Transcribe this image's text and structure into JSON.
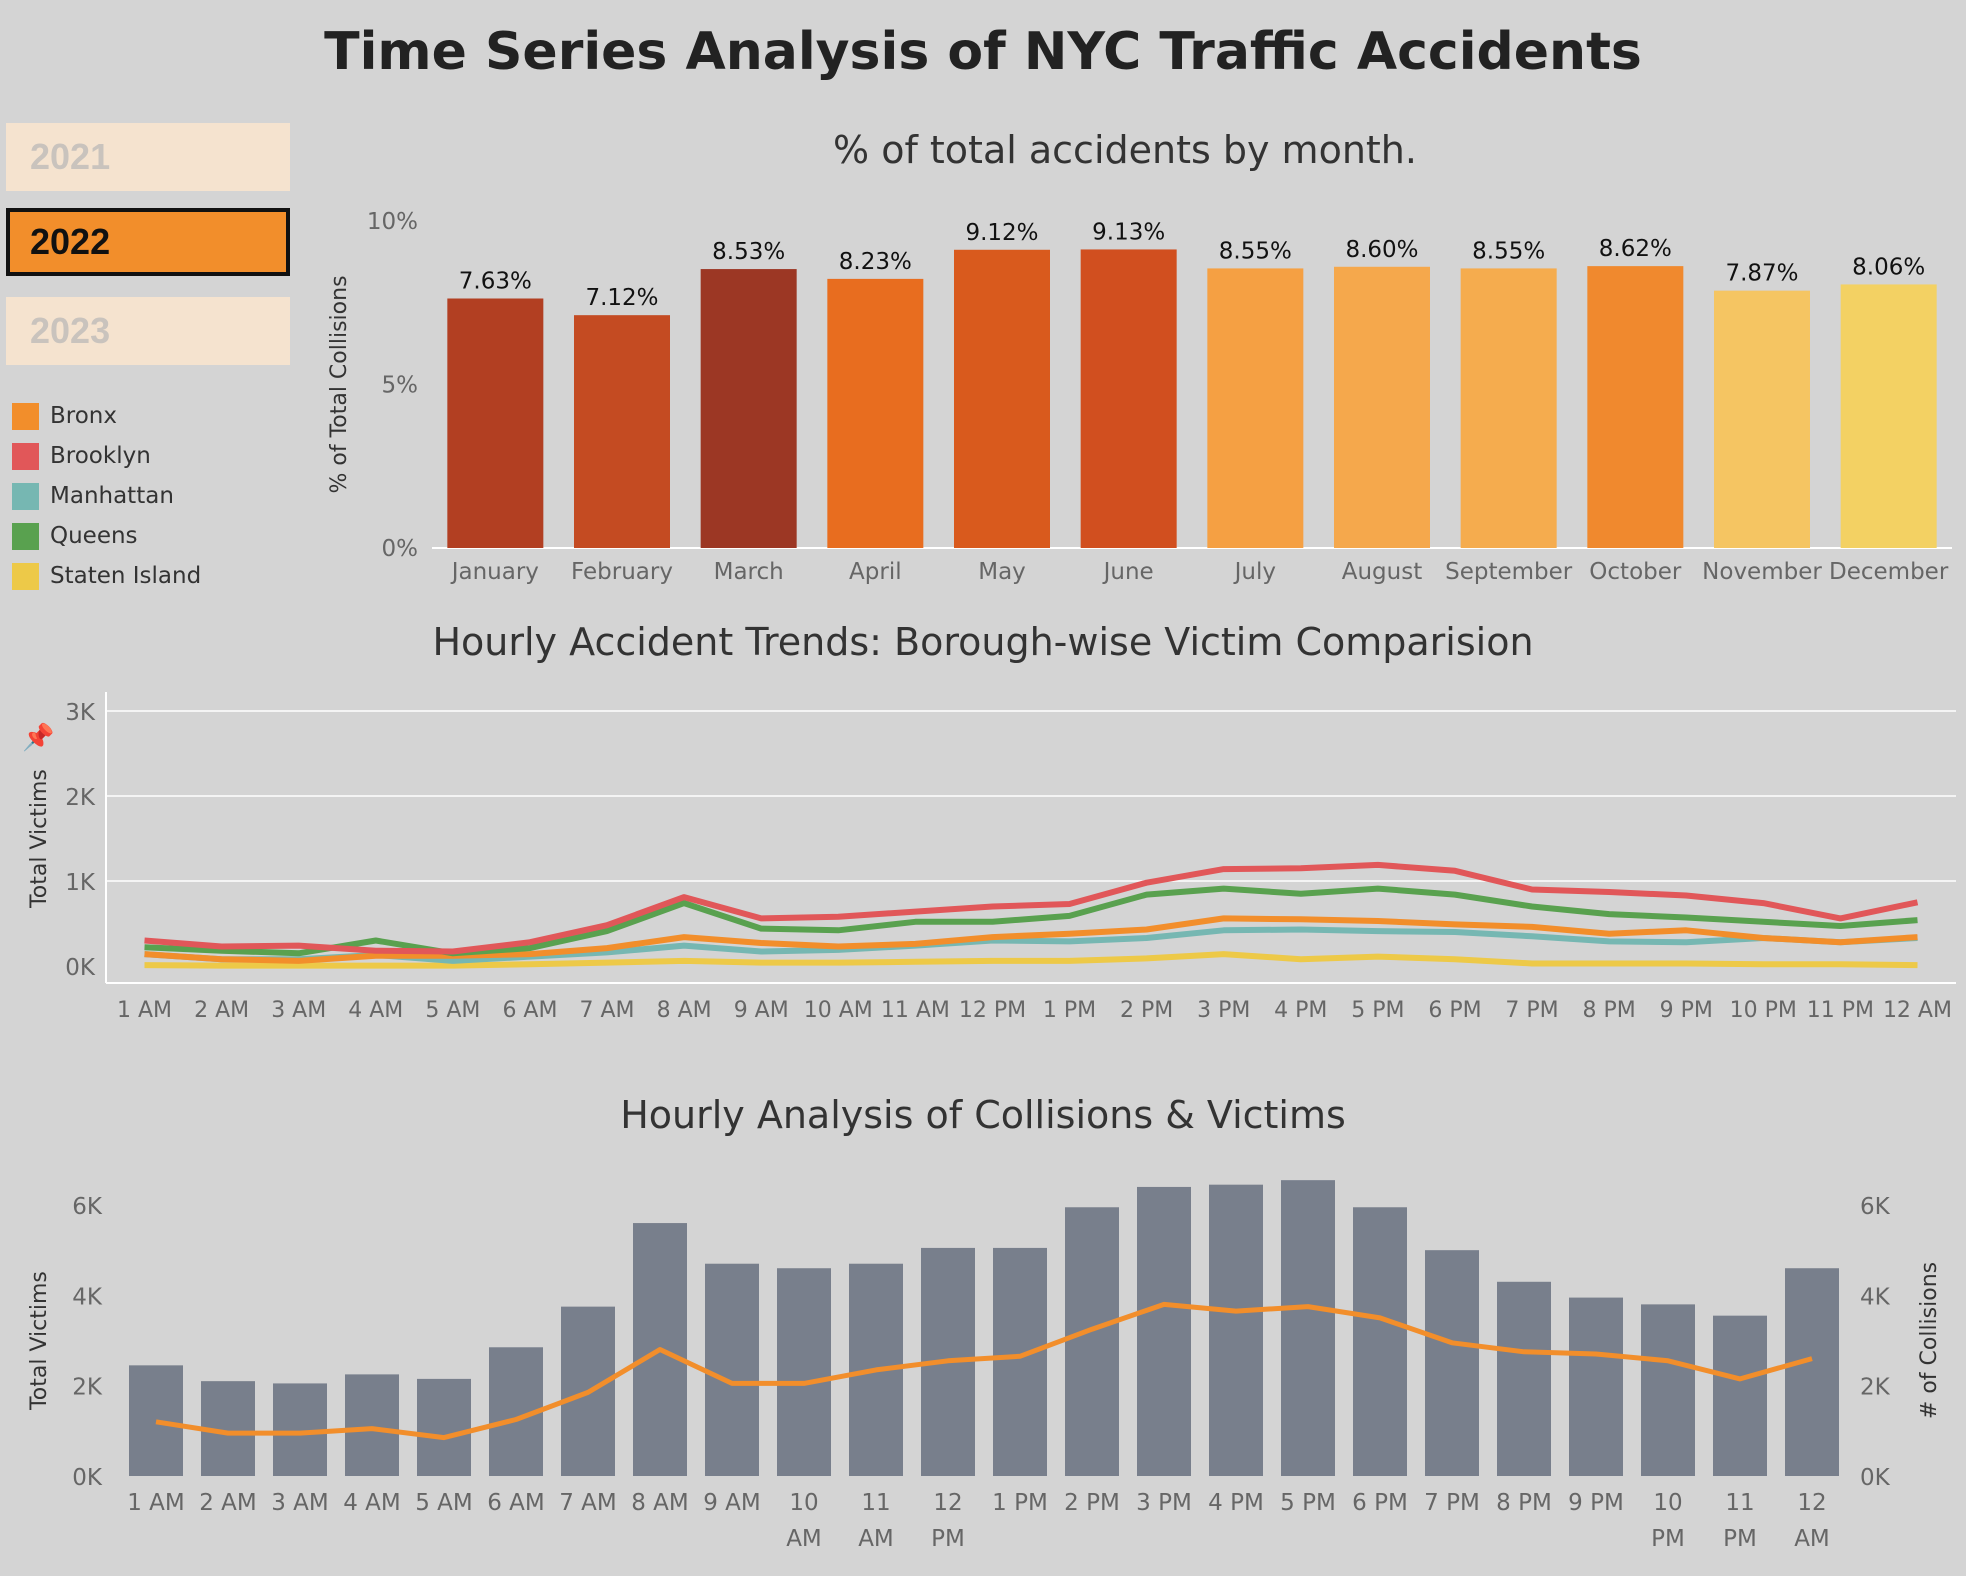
{
  "title": "Time Series Analysis of NYC Traffic Accidents",
  "year_filter": {
    "options": [
      {
        "label": "2021",
        "selected": false
      },
      {
        "label": "2022",
        "selected": true
      },
      {
        "label": "2023",
        "selected": false
      }
    ]
  },
  "legend": {
    "items": [
      {
        "label": "Bronx",
        "color": "#f28e2b"
      },
      {
        "label": "Brooklyn",
        "color": "#e15759"
      },
      {
        "label": "Manhattan",
        "color": "#76b7b2"
      },
      {
        "label": "Queens",
        "color": "#59a14f"
      },
      {
        "label": "Staten Island",
        "color": "#edc948"
      }
    ]
  },
  "chart_data": [
    {
      "type": "bar",
      "title": "% of total accidents by month.",
      "ylabel": "% of Total Collisions",
      "xlabel": "",
      "ylim": [
        0,
        10
      ],
      "yticks": [
        "0%",
        "5%",
        "10%"
      ],
      "categories": [
        "January",
        "February",
        "March",
        "April",
        "May",
        "June",
        "July",
        "August",
        "September",
        "October",
        "November",
        "December"
      ],
      "values": [
        7.63,
        7.12,
        8.53,
        8.23,
        9.12,
        9.13,
        8.55,
        8.6,
        8.55,
        8.62,
        7.87,
        8.06
      ],
      "labels": [
        "7.63%",
        "7.12%",
        "8.53%",
        "8.23%",
        "9.12%",
        "9.13%",
        "8.55%",
        "8.60%",
        "8.55%",
        "8.62%",
        "7.87%",
        "8.06%"
      ],
      "colors": [
        "#b23f22",
        "#c44b22",
        "#9c3724",
        "#e86d1f",
        "#d95a1d",
        "#d14f1f",
        "#f5a043",
        "#f5a84c",
        "#f5ac4e",
        "#f0892e",
        "#f5c562",
        "#f3d163"
      ]
    },
    {
      "type": "line",
      "title": "Hourly Accident Trends: Borough-wise Victim Comparision",
      "ylabel": "Total Victims",
      "xlabel": "",
      "ylim": [
        0,
        3000
      ],
      "yticks": [
        "0K",
        "1K",
        "2K",
        "3K"
      ],
      "x": [
        "1 AM",
        "2 AM",
        "3 AM",
        "4 AM",
        "5 AM",
        "6 AM",
        "7 AM",
        "8 AM",
        "9 AM",
        "10 AM",
        "11 AM",
        "12 PM",
        "1 PM",
        "2 PM",
        "3 PM",
        "4 PM",
        "5 PM",
        "6 PM",
        "7 PM",
        "8 PM",
        "9 PM",
        "10 PM",
        "11 PM",
        "12 AM"
      ],
      "series": [
        {
          "name": "Staten Island",
          "color": "#edc948",
          "values": [
            10,
            5,
            5,
            5,
            5,
            20,
            40,
            60,
            40,
            40,
            50,
            60,
            60,
            90,
            140,
            80,
            110,
            80,
            30,
            30,
            30,
            20,
            20,
            10
          ]
        },
        {
          "name": "Manhattan",
          "color": "#76b7b2",
          "values": [
            140,
            80,
            80,
            130,
            60,
            110,
            160,
            240,
            170,
            190,
            240,
            300,
            290,
            330,
            420,
            430,
            410,
            400,
            350,
            290,
            280,
            330,
            280,
            330
          ]
        },
        {
          "name": "Bronx",
          "color": "#f28e2b",
          "values": [
            140,
            80,
            60,
            120,
            120,
            140,
            210,
            340,
            270,
            230,
            260,
            340,
            380,
            430,
            560,
            550,
            530,
            490,
            460,
            380,
            420,
            330,
            280,
            340
          ]
        },
        {
          "name": "Queens",
          "color": "#59a14f",
          "values": [
            220,
            180,
            150,
            300,
            150,
            210,
            410,
            740,
            440,
            420,
            520,
            520,
            590,
            840,
            910,
            850,
            910,
            840,
            700,
            610,
            570,
            520,
            470,
            540
          ]
        },
        {
          "name": "Brooklyn",
          "color": "#e15759",
          "values": [
            300,
            230,
            240,
            180,
            170,
            280,
            480,
            810,
            560,
            580,
            640,
            700,
            730,
            980,
            1140,
            1150,
            1190,
            1120,
            900,
            870,
            830,
            740,
            560,
            750
          ]
        }
      ]
    },
    {
      "type": "bar",
      "title": "Hourly Analysis of Collisions & Victims",
      "ylabel": "Total Victims",
      "y2label": "# of Collisions",
      "xlabel": "",
      "ylim": [
        0,
        6000
      ],
      "yticks": [
        "0K",
        "2K",
        "4K",
        "6K"
      ],
      "y2ticks": [
        "0K",
        "2K",
        "4K",
        "6K"
      ],
      "categories": [
        "1 AM",
        "2 AM",
        "3 AM",
        "4 AM",
        "5 AM",
        "6 AM",
        "7 AM",
        "8 AM",
        "9 AM",
        "10 AM",
        "11 AM",
        "12 PM",
        "1 PM",
        "2 PM",
        "3 PM",
        "4 PM",
        "5 PM",
        "6 PM",
        "7 PM",
        "8 PM",
        "9 PM",
        "10 PM",
        "11 PM",
        "12 AM"
      ],
      "category_labels": [
        [
          "1 AM"
        ],
        [
          "2 AM"
        ],
        [
          "3 AM"
        ],
        [
          "4 AM"
        ],
        [
          "5 AM"
        ],
        [
          "6 AM"
        ],
        [
          "7 AM"
        ],
        [
          "8 AM"
        ],
        [
          "9 AM"
        ],
        [
          "10",
          "AM"
        ],
        [
          "11",
          "AM"
        ],
        [
          "12",
          "PM"
        ],
        [
          "1 PM"
        ],
        [
          "2 PM"
        ],
        [
          "3 PM"
        ],
        [
          "4 PM"
        ],
        [
          "5 PM"
        ],
        [
          "6 PM"
        ],
        [
          "7 PM"
        ],
        [
          "8 PM"
        ],
        [
          "9 PM"
        ],
        [
          "10",
          "PM"
        ],
        [
          "11",
          "PM"
        ],
        [
          "12",
          "AM"
        ]
      ],
      "series": [
        {
          "name": "Total Victims",
          "type": "bar",
          "color": "#787f8c",
          "values": [
            2450,
            2100,
            2050,
            2250,
            2150,
            2850,
            3750,
            5600,
            4700,
            4600,
            4700,
            5050,
            5050,
            5950,
            6400,
            6450,
            6550,
            5950,
            5000,
            4300,
            3950,
            3800,
            3550,
            4600
          ]
        },
        {
          "name": "# of Collisions",
          "type": "line",
          "color": "#f28e2b",
          "values": [
            1200,
            950,
            950,
            1050,
            850,
            1250,
            1850,
            2800,
            2050,
            2050,
            2350,
            2550,
            2650,
            3250,
            3800,
            3650,
            3750,
            3500,
            2950,
            2750,
            2700,
            2550,
            2150,
            2600
          ]
        }
      ]
    }
  ]
}
